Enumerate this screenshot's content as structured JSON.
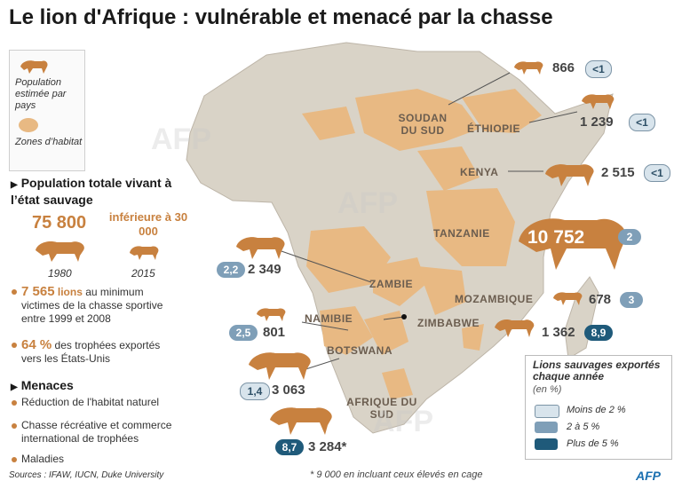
{
  "title": "Le lion d'Afrique : vulnérable et menacé par la chasse",
  "legend": {
    "population_label": "Population estimée par pays",
    "habitat_label": "Zones d’habitat"
  },
  "total": {
    "heading": "Population totale vivant à l’état sauvage",
    "value_1980": "75 800",
    "value_2015": "inférieure à 30 000",
    "year_1980": "1980",
    "year_2015": "2015"
  },
  "facts": [
    {
      "num": "7 565",
      "word": "lions",
      "text": "au minimum victimes de la chasse sportive entre 1999 et 2008"
    },
    {
      "num": "64 %",
      "text": "des trophées exportés vers les États-Unis"
    }
  ],
  "threats": {
    "heading": "Menaces",
    "items": [
      "Réduction de l'habitat naturel",
      "Chasse récréative et commerce international de trophées",
      "Maladies"
    ]
  },
  "countries": [
    {
      "name": "SOUDAN DU SUD",
      "population": "866",
      "export": "<1",
      "category": "low"
    },
    {
      "name": "ÉTHIOPIE",
      "population": "1 239",
      "export": "<1",
      "category": "low"
    },
    {
      "name": "KENYA",
      "population": "2 515",
      "export": "<1",
      "category": "low"
    },
    {
      "name": "TANZANIE",
      "population": "10 752",
      "export": "2",
      "category": "mid"
    },
    {
      "name": "ZAMBIE",
      "population": "2 349",
      "export": "2,2",
      "category": "mid"
    },
    {
      "name": "MOZAMBIQUE",
      "population": "678",
      "export": "3",
      "category": "mid"
    },
    {
      "name": "NAMIBIE",
      "population": "801",
      "export": "2,5",
      "category": "mid"
    },
    {
      "name": "ZIMBABWE",
      "population": "1 362",
      "export": "8,9",
      "category": "high"
    },
    {
      "name": "BOTSWANA",
      "population": "3 063",
      "export": "1,4",
      "category": "low"
    },
    {
      "name": "AFRIQUE DU SUD",
      "population": "3 284*",
      "export": "8,7",
      "category": "high"
    }
  ],
  "export_legend": {
    "title": "Lions sauvages exportés chaque année",
    "unit": "(en %)",
    "items": [
      "Moins de 2 %",
      "2 à 5 %",
      "Plus de 5 %"
    ]
  },
  "colors": {
    "lion": "#c8813f",
    "habitat": "#e8b983",
    "land": "#d9d3c7",
    "low": "#d8e4ec",
    "mid": "#7f9fb8",
    "high": "#1f5a7a"
  },
  "footnote": "* 9 000 en incluant ceux élevés en cage",
  "sources": "Sources : IFAW, IUCN, Duke University",
  "logo": "AFP",
  "watermark": "AFP"
}
